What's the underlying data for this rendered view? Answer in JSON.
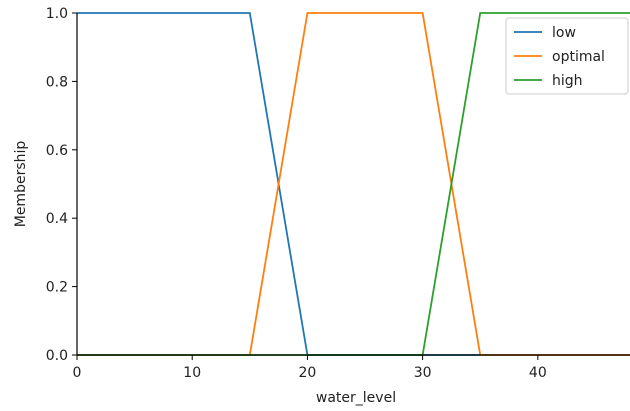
{
  "chart_data": {
    "type": "line",
    "xlabel": "water_level",
    "ylabel": "Membership",
    "xlim": [
      0,
      48
    ],
    "ylim": [
      0,
      1
    ],
    "xticks": [
      0,
      10,
      20,
      30,
      40
    ],
    "yticks": [
      0.0,
      0.2,
      0.4,
      0.6,
      0.8,
      1.0
    ],
    "grid": false,
    "legend_position": "top-right",
    "series": [
      {
        "name": "low",
        "color": "#1f77b4",
        "points": [
          [
            0,
            1
          ],
          [
            15,
            1
          ],
          [
            20,
            0
          ],
          [
            48,
            0
          ]
        ]
      },
      {
        "name": "optimal",
        "color": "#ff7f0e",
        "points": [
          [
            0,
            0
          ],
          [
            15,
            0
          ],
          [
            20,
            1
          ],
          [
            30,
            1
          ],
          [
            35,
            0
          ],
          [
            48,
            0
          ]
        ]
      },
      {
        "name": "high",
        "color": "#2ca02c",
        "points": [
          [
            0,
            0
          ],
          [
            30,
            0
          ],
          [
            35,
            1
          ],
          [
            48,
            1
          ]
        ]
      }
    ]
  }
}
